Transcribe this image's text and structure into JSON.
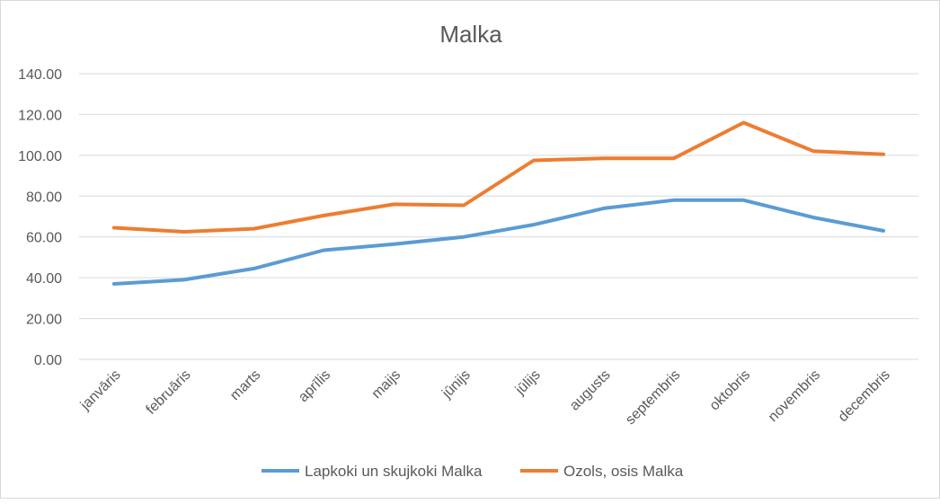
{
  "chart_data": {
    "type": "line",
    "title": "Malka",
    "xlabel": "",
    "ylabel": "",
    "categories": [
      "janvāris",
      "februāris",
      "marts",
      "aprīlis",
      "maijs",
      "jūnijs",
      "jūlijs",
      "augusts",
      "septembris",
      "oktobris",
      "novembris",
      "decembris"
    ],
    "yticks": [
      "0.00",
      "20.00",
      "40.00",
      "60.00",
      "80.00",
      "100.00",
      "120.00",
      "140.00"
    ],
    "ylim": [
      0,
      140
    ],
    "grid": true,
    "legend_position": "bottom",
    "series": [
      {
        "name": "Lapkoki un skujkoki Malka",
        "color": "#5b9bd5",
        "values": [
          37,
          39,
          44.5,
          53.5,
          56.5,
          60,
          66,
          74,
          78,
          78,
          69.5,
          63
        ]
      },
      {
        "name": "Ozols, osis Malka",
        "color": "#ed7d31",
        "values": [
          64.5,
          62.5,
          64,
          70.5,
          76,
          75.5,
          97.5,
          98.5,
          98.5,
          116,
          102,
          100.5
        ]
      }
    ]
  }
}
